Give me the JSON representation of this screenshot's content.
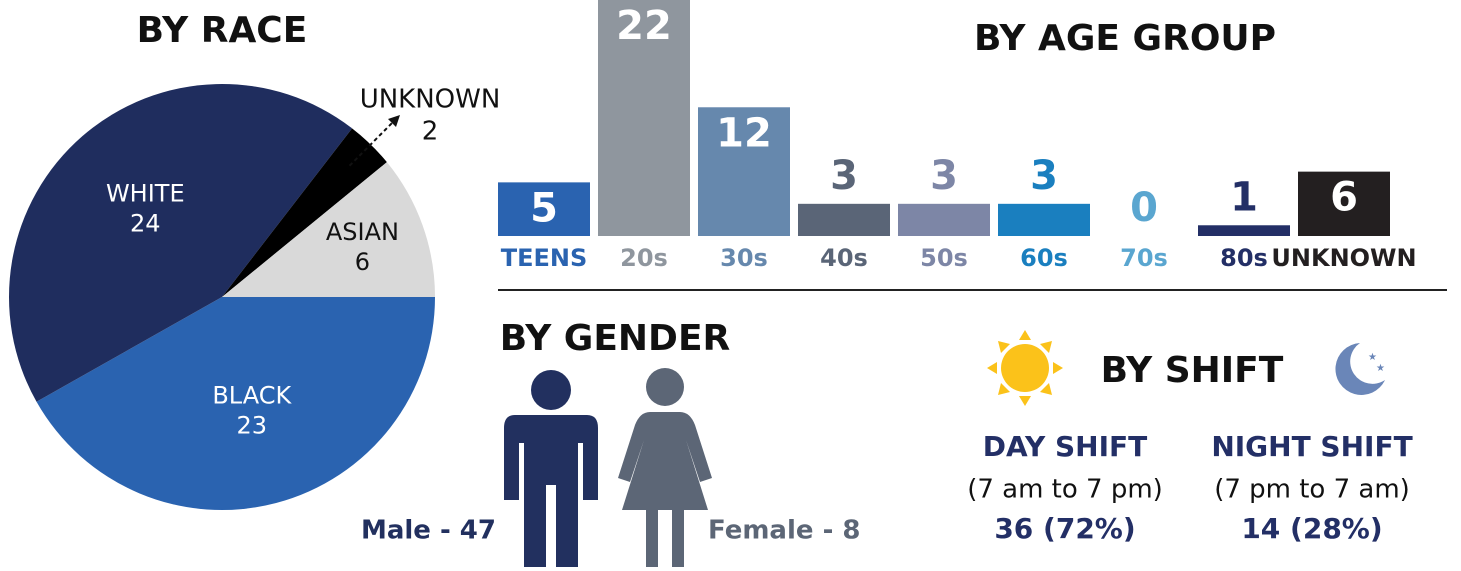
{
  "chart_data": [
    {
      "type": "pie",
      "title": "BY RACE",
      "categories": [
        "BLACK",
        "WHITE",
        "UNKNOWN",
        "ASIAN"
      ],
      "values": [
        23,
        24,
        2,
        6
      ],
      "colors": [
        "#2a63b0",
        "#1f2d5e",
        "#000000",
        "#d9d9d9"
      ]
    },
    {
      "type": "bar",
      "title": "BY AGE GROUP",
      "categories": [
        "TEENS",
        "20s",
        "30s",
        "40s",
        "50s",
        "60s",
        "70s",
        "80s",
        "UNKNOWN"
      ],
      "values": [
        5,
        22,
        12,
        3,
        3,
        3,
        0,
        1,
        6
      ],
      "colors": [
        "#2a63b0",
        "#8f969e",
        "#6688ad",
        "#5a6577",
        "#7d86a6",
        "#1a7fbf",
        "#5aa6d0",
        "#232f66",
        "#231f20"
      ]
    },
    {
      "type": "pictogram",
      "title": "BY GENDER",
      "categories": [
        "Male",
        "Female"
      ],
      "values": [
        47,
        8
      ],
      "value_labels": [
        "Male - 47",
        "Female - 8"
      ],
      "colors": [
        "#22305f",
        "#5c6676"
      ]
    },
    {
      "type": "text",
      "title": "BY SHIFT",
      "categories": [
        "DAY SHIFT",
        "NIGHT SHIFT"
      ],
      "subtitles": [
        "(7 am to 7 pm)",
        "(7 pm to 7 am)"
      ],
      "values": [
        36,
        14
      ],
      "value_labels": [
        "36 (72%)",
        "14 (28%)"
      ]
    }
  ]
}
